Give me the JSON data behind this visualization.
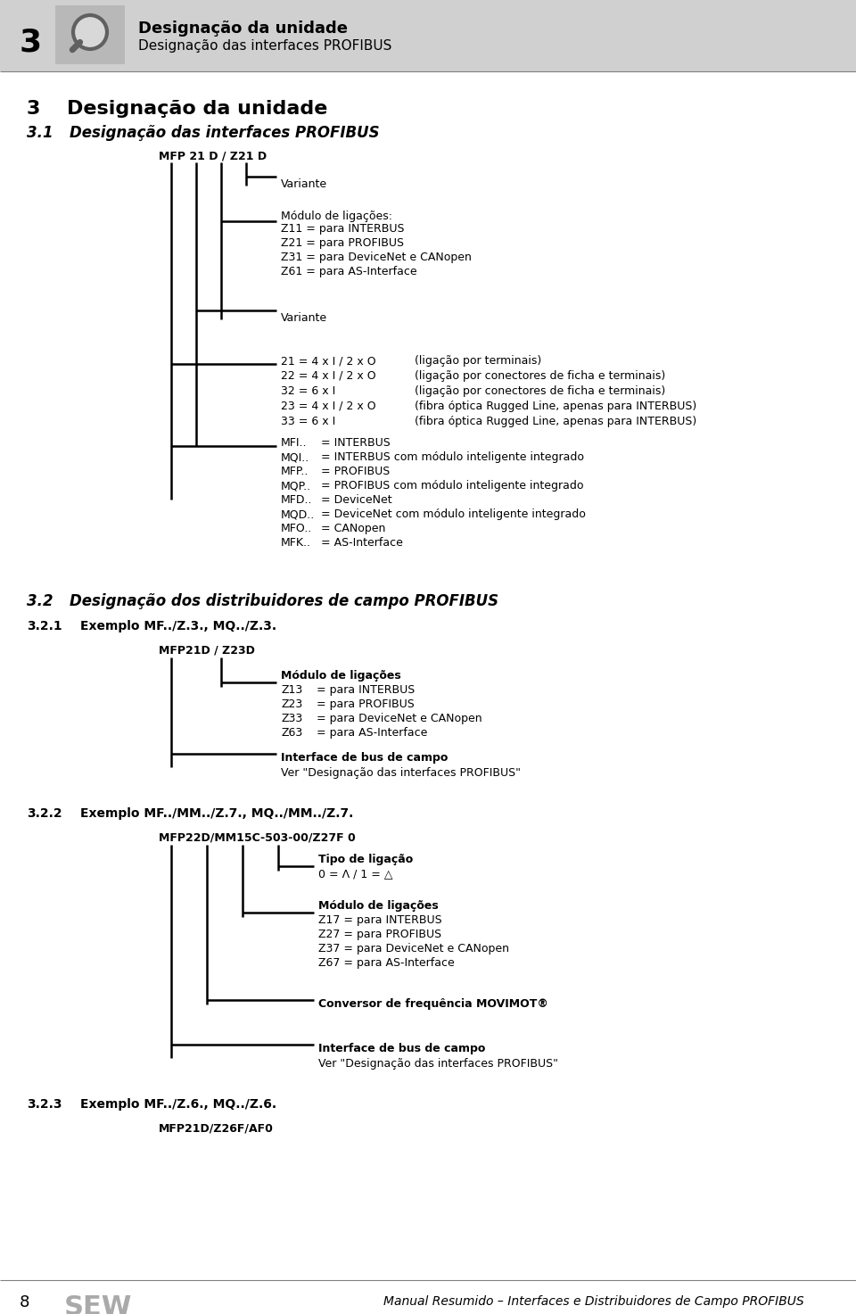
{
  "header_number": "3",
  "header_title_bold": "Designação da unidade",
  "header_title_normal": "Designação das interfaces PROFIBUS",
  "diagram1_label": "MFP 21 D / Z21 D",
  "diagram1_variante1": "Variante",
  "diagram1_modulo_title": "Módulo de ligações:",
  "diagram1_modulo_lines": [
    "Z11 = para INTERBUS",
    "Z21 = para PROFIBUS",
    "Z31 = para DeviceNet e CANopen",
    "Z61 = para AS-Interface"
  ],
  "diagram1_variante2": "Variante",
  "diagram1_variant_lines": [
    [
      "21 = 4 x I / 2 x O",
      "(ligação por terminais)"
    ],
    [
      "22 = 4 x I / 2 x O",
      "(ligação por conectores de ficha e terminais)"
    ],
    [
      "32 = 6 x I",
      "(ligação por conectores de ficha e terminais)"
    ],
    [
      "23 = 4 x I / 2 x O",
      "(fibra óptica Rugged Line, apenas para INTERBUS)"
    ],
    [
      "33 = 6 x I",
      "(fibra óptica Rugged Line, apenas para INTERBUS)"
    ]
  ],
  "diagram1_mf_lines": [
    [
      "MFI..",
      "= INTERBUS"
    ],
    [
      "MQI..",
      "= INTERBUS com módulo inteligente integrado"
    ],
    [
      "MFP..",
      "= PROFIBUS"
    ],
    [
      "MQP..",
      "= PROFIBUS com módulo inteligente integrado"
    ],
    [
      "MFD..",
      "= DeviceNet"
    ],
    [
      "MQD..",
      "= DeviceNet com módulo inteligente integrado"
    ],
    [
      "MFO..",
      "= CANopen"
    ],
    [
      "MFK..",
      "= AS-Interface"
    ]
  ],
  "diagram2_label": "MFP21D / Z23D",
  "diagram2_modulo_title": "Módulo de ligações",
  "diagram2_modulo_lines": [
    [
      "Z13",
      "= para INTERBUS"
    ],
    [
      "Z23",
      "= para PROFIBUS"
    ],
    [
      "Z33",
      "= para DeviceNet e CANopen"
    ],
    [
      "Z63",
      "= para AS-Interface"
    ]
  ],
  "diagram2_interface_title": "Interface de bus de campo",
  "diagram2_interface_line": "Ver \"Designação das interfaces PROFIBUS\"",
  "diagram3_label": "MFP22D/MM15C-503-00/Z27F 0",
  "diagram3_tipo_title": "Tipo de ligação",
  "diagram3_modulo_title": "Módulo de ligações",
  "diagram3_modulo_lines": [
    "Z17 = para INTERBUS",
    "Z27 = para PROFIBUS",
    "Z37 = para DeviceNet e CANopen",
    "Z67 = para AS-Interface"
  ],
  "diagram3_conversor": "Conversor de frequência MOVIMOT®",
  "diagram3_interface_title": "Interface de bus de campo",
  "diagram3_interface_line": "Ver \"Designação das interfaces PROFIBUS\"",
  "diagram4_label": "MFP21D/Z26F/AF0",
  "footer_page": "8",
  "footer_text": "Manual Resumido – Interfaces e Distribuidores de Campo PROFIBUS",
  "bg_color": "#ffffff",
  "header_bg": "#d0d0d0"
}
